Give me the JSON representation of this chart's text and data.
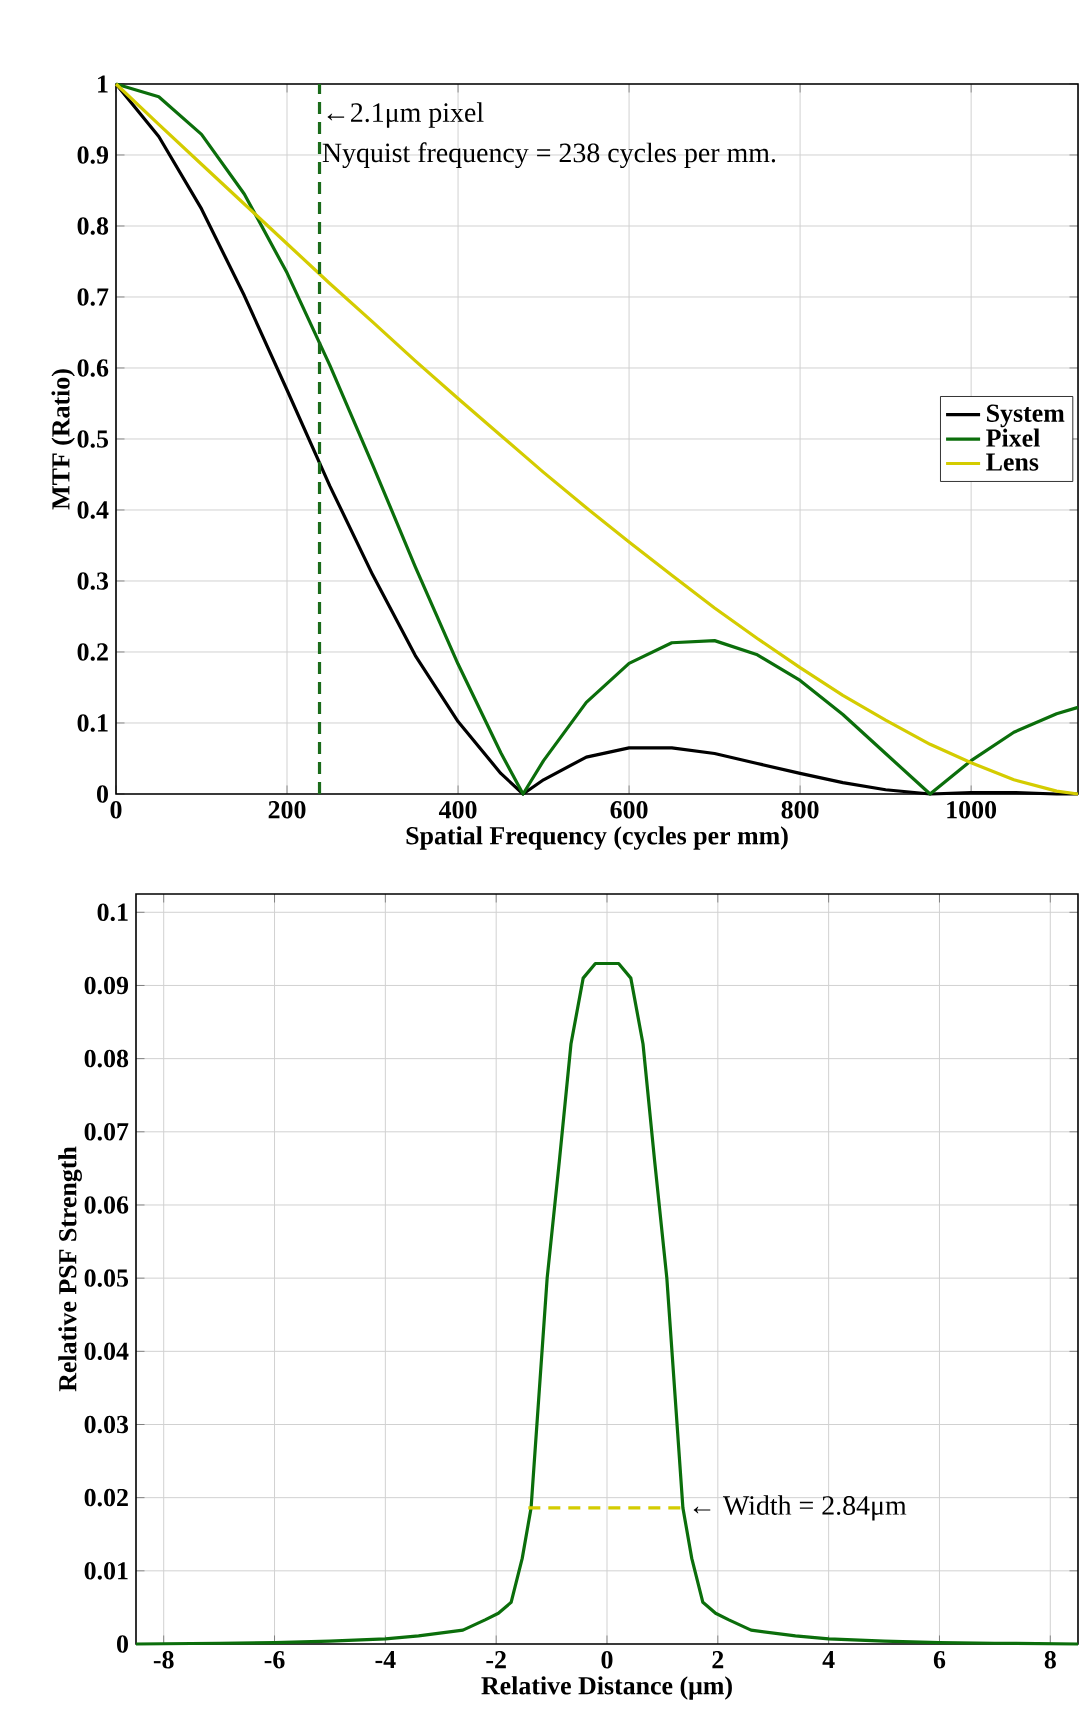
{
  "chart_data": [
    {
      "type": "line",
      "xlabel": "Spatial Frequency (cycles per mm)",
      "ylabel": "MTF (Ratio)",
      "xlim": [
        0,
        1125
      ],
      "ylim": [
        0,
        1
      ],
      "xticks": [
        0,
        200,
        400,
        600,
        800,
        1000
      ],
      "yticks": [
        0,
        0.1,
        0.2,
        0.3,
        0.4,
        0.5,
        0.6,
        0.7,
        0.8,
        0.9,
        1
      ],
      "grid": true,
      "legend": "right",
      "x": [
        0,
        50,
        100,
        150,
        200,
        250,
        300,
        350,
        400,
        450,
        476,
        500,
        550,
        600,
        650,
        700,
        750,
        800,
        850,
        900,
        952,
        1000,
        1050,
        1100,
        1125
      ],
      "series": [
        {
          "name": "System",
          "color": "#000000",
          "values": [
            1,
            0.926,
            0.824,
            0.702,
            0.569,
            0.434,
            0.309,
            0.195,
            0.102,
            0.029,
            0,
            0.02,
            0.052,
            0.065,
            0.065,
            0.057,
            0.043,
            0.029,
            0.016,
            0.006,
            0,
            0.002,
            0.002,
            0,
            0
          ]
        },
        {
          "name": "Pixel",
          "color": "#0b6e0b",
          "values": [
            1,
            0.982,
            0.929,
            0.845,
            0.734,
            0.604,
            0.464,
            0.32,
            0.183,
            0.058,
            0,
            0.047,
            0.129,
            0.184,
            0.213,
            0.216,
            0.196,
            0.16,
            0.112,
            0.057,
            0,
            0.047,
            0.087,
            0.113,
            0.122
          ]
        },
        {
          "name": "Lens",
          "color": "#d4cc00",
          "values": [
            1,
            0.943,
            0.887,
            0.831,
            0.775,
            0.719,
            0.665,
            0.61,
            0.557,
            0.505,
            0.478,
            0.453,
            0.403,
            0.355,
            0.308,
            0.262,
            0.219,
            0.178,
            0.139,
            0.104,
            0.07,
            0.044,
            0.02,
            0.004,
            0
          ]
        }
      ],
      "ref_lines": [
        {
          "axis": "x",
          "value": 238,
          "color": "#1a6b1a",
          "line_style": "dashed"
        }
      ],
      "annotations": [
        "←2.1μm pixel",
        "Nyquist frequency = 238 cycles per mm."
      ]
    },
    {
      "type": "line",
      "xlabel": "Relative Distance (μm)",
      "ylabel": "Relative PSF Strength",
      "xlim": [
        -8.5,
        8.5
      ],
      "ylim": [
        0,
        0.1025
      ],
      "xticks": [
        -8,
        -6,
        -4,
        -2,
        0,
        2,
        4,
        6,
        8
      ],
      "yticks": [
        0,
        0.01,
        0.02,
        0.03,
        0.04,
        0.05,
        0.06,
        0.07,
        0.08,
        0.09,
        0.1
      ],
      "grid": true,
      "series": [
        {
          "color": "#0b6e0b",
          "x": [
            -8.5,
            -7,
            -6,
            -5,
            -4,
            -3.4,
            -2.6,
            -2.2,
            -1.96,
            -1.73,
            -1.53,
            -1.37,
            -1.08,
            -0.86,
            -0.65,
            -0.43,
            -0.21,
            0.21,
            0.43,
            0.65,
            0.86,
            1.08,
            1.37,
            1.53,
            1.73,
            1.96,
            2.2,
            2.6,
            3.4,
            4,
            5,
            6,
            7,
            8.5
          ],
          "values": [
            0,
            0.0001,
            0.0002,
            0.0004,
            0.0007,
            0.0011,
            0.0019,
            0.0033,
            0.0042,
            0.0057,
            0.0117,
            0.0186,
            0.05,
            0.066,
            0.082,
            0.091,
            0.093,
            0.093,
            0.091,
            0.082,
            0.066,
            0.05,
            0.0186,
            0.0117,
            0.0057,
            0.0042,
            0.0033,
            0.0019,
            0.0011,
            0.0007,
            0.0004,
            0.0002,
            0.0001,
            0
          ]
        },
        {
          "color": "#d4cc00",
          "line_style": "dashed",
          "x": [
            -1.42,
            1.42
          ],
          "values": [
            0.0186,
            0.0186
          ]
        }
      ],
      "annotations": [
        {
          "text": "← Width = 2.84μm",
          "x": 1.42,
          "y": 0.0186
        }
      ]
    }
  ]
}
